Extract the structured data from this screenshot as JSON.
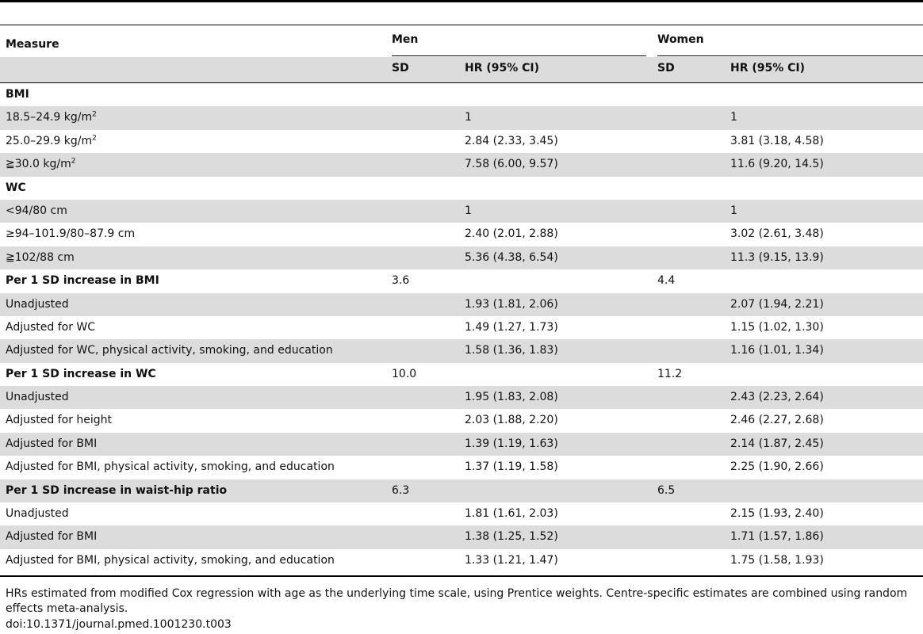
{
  "table": {
    "headers": {
      "measure": "Measure",
      "men": "Men",
      "women": "Women",
      "sd": "SD",
      "hr": "HR (95% CI)"
    },
    "rows": [
      {
        "label": "BMI",
        "men_sd": "",
        "men_hr": "",
        "women_sd": "",
        "women_hr": "",
        "bold": true,
        "shaded": false
      },
      {
        "label": "18.5–24.9 kg/m",
        "sup": "2",
        "men_sd": "",
        "men_hr": "1",
        "women_sd": "",
        "women_hr": "1",
        "bold": false,
        "shaded": true
      },
      {
        "label": "25.0–29.9 kg/m",
        "sup": "2",
        "men_sd": "",
        "men_hr": "2.84 (2.33, 3.45)",
        "women_sd": "",
        "women_hr": "3.81 (3.18, 4.58)",
        "bold": false,
        "shaded": false
      },
      {
        "label": "≧30.0 kg/m",
        "sup": "2",
        "men_sd": "",
        "men_hr": "7.58 (6.00, 9.57)",
        "women_sd": "",
        "women_hr": "11.6 (9.20, 14.5)",
        "bold": false,
        "shaded": true
      },
      {
        "label": "WC",
        "men_sd": "",
        "men_hr": "",
        "women_sd": "",
        "women_hr": "",
        "bold": true,
        "shaded": false
      },
      {
        "label": "<94/80 cm",
        "men_sd": "",
        "men_hr": "1",
        "women_sd": "",
        "women_hr": "1",
        "bold": false,
        "shaded": true
      },
      {
        "label": "≥94–101.9/80–87.9 cm",
        "men_sd": "",
        "men_hr": "2.40 (2.01, 2.88)",
        "women_sd": "",
        "women_hr": "3.02 (2.61, 3.48)",
        "bold": false,
        "shaded": false
      },
      {
        "label": "≧102/88 cm",
        "men_sd": "",
        "men_hr": "5.36 (4.38, 6.54)",
        "women_sd": "",
        "women_hr": "11.3 (9.15, 13.9)",
        "bold": false,
        "shaded": true
      },
      {
        "label": "Per 1 SD increase in BMI",
        "men_sd": "3.6",
        "men_hr": "",
        "women_sd": "4.4",
        "women_hr": "",
        "bold": true,
        "shaded": false
      },
      {
        "label": "Unadjusted",
        "men_sd": "",
        "men_hr": "1.93 (1.81, 2.06)",
        "women_sd": "",
        "women_hr": "2.07 (1.94, 2.21)",
        "bold": false,
        "shaded": true
      },
      {
        "label": "Adjusted for WC",
        "men_sd": "",
        "men_hr": "1.49 (1.27, 1.73)",
        "women_sd": "",
        "women_hr": "1.15 (1.02, 1.30)",
        "bold": false,
        "shaded": false
      },
      {
        "label": "Adjusted for WC, physical activity, smoking, and education",
        "men_sd": "",
        "men_hr": "1.58 (1.36, 1.83)",
        "women_sd": "",
        "women_hr": "1.16 (1.01, 1.34)",
        "bold": false,
        "shaded": true
      },
      {
        "label": "Per 1 SD increase in WC",
        "men_sd": "10.0",
        "men_hr": "",
        "women_sd": "11.2",
        "women_hr": "",
        "bold": true,
        "shaded": false
      },
      {
        "label": "Unadjusted",
        "men_sd": "",
        "men_hr": "1.95 (1.83, 2.08)",
        "women_sd": "",
        "women_hr": "2.43 (2.23, 2.64)",
        "bold": false,
        "shaded": true
      },
      {
        "label": "Adjusted for height",
        "men_sd": "",
        "men_hr": "2.03 (1.88, 2.20)",
        "women_sd": "",
        "women_hr": "2.46 (2.27, 2.68)",
        "bold": false,
        "shaded": false
      },
      {
        "label": "Adjusted for BMI",
        "men_sd": "",
        "men_hr": "1.39 (1.19, 1.63)",
        "women_sd": "",
        "women_hr": "2.14 (1.87, 2.45)",
        "bold": false,
        "shaded": true
      },
      {
        "label": "Adjusted for BMI, physical activity, smoking, and education",
        "men_sd": "",
        "men_hr": "1.37 (1.19, 1.58)",
        "women_sd": "",
        "women_hr": "2.25 (1.90, 2.66)",
        "bold": false,
        "shaded": false
      },
      {
        "label": "Per 1 SD increase in waist-hip ratio",
        "men_sd": "6.3",
        "men_hr": "",
        "women_sd": "6.5",
        "women_hr": "",
        "bold": true,
        "shaded": true
      },
      {
        "label": "Unadjusted",
        "men_sd": "",
        "men_hr": "1.81 (1.61, 2.03)",
        "women_sd": "",
        "women_hr": "2.15 (1.93, 2.40)",
        "bold": false,
        "shaded": false
      },
      {
        "label": "Adjusted for BMI",
        "men_sd": "",
        "men_hr": "1.38 (1.25, 1.52)",
        "women_sd": "",
        "women_hr": "1.71 (1.57, 1.86)",
        "bold": false,
        "shaded": true
      },
      {
        "label": "Adjusted for BMI, physical activity, smoking, and education",
        "men_sd": "",
        "men_hr": "1.33 (1.21, 1.47)",
        "women_sd": "",
        "women_hr": "1.75 (1.58, 1.93)",
        "bold": false,
        "shaded": false
      }
    ]
  },
  "footnote": "HRs estimated from modified Cox regression with age as the underlying time scale, using Prentice weights. Centre-specific estimates are combined using random effects meta-analysis.",
  "doi": "doi:10.1371/journal.pmed.1001230.t003"
}
